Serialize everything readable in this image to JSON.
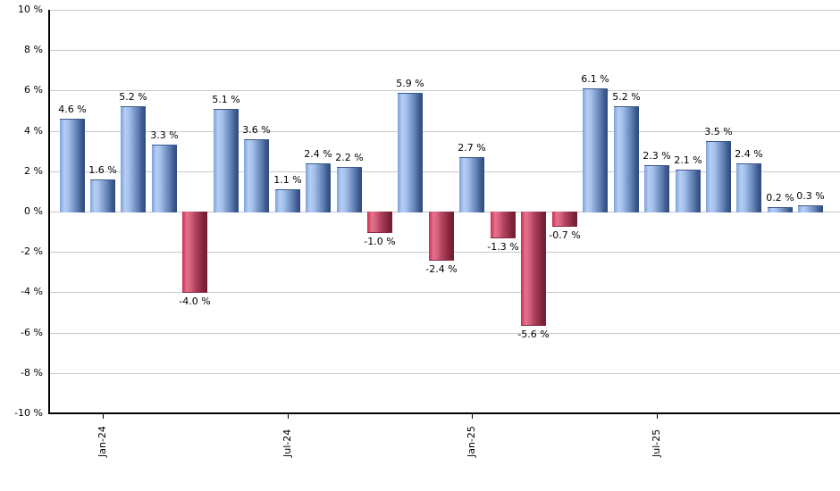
{
  "chart_data": {
    "type": "bar",
    "title": "",
    "xlabel": "",
    "ylabel": "",
    "unit": "%",
    "ylim": [
      -10,
      10
    ],
    "y_tick_step": 2,
    "grid": true,
    "legend": false,
    "y_tick_labels": [
      "10 %",
      "8 %",
      "6 %",
      "4 %",
      "2 %",
      "0 %",
      "-2 %",
      "-4 %",
      "-6 %",
      "-8 %",
      "-10 %"
    ],
    "values": [
      4.6,
      1.6,
      5.2,
      3.3,
      -4.0,
      5.1,
      3.6,
      1.1,
      2.4,
      2.2,
      -1.0,
      5.9,
      -2.4,
      2.7,
      -1.3,
      -5.6,
      -0.7,
      6.1,
      5.2,
      2.3,
      2.1,
      3.5,
      2.4,
      0.2,
      0.3
    ],
    "bar_labels": [
      "4.6 %",
      "1.6 %",
      "5.2 %",
      "3.3 %",
      "-4.0 %",
      "5.1 %",
      "3.6 %",
      "1.1 %",
      "2.4 %",
      "2.2 %",
      "-1.0 %",
      "5.9 %",
      "-2.4 %",
      "2.7 %",
      "-1.3 %",
      "-5.6 %",
      "-0.7 %",
      "6.1 %",
      "5.2 %",
      "2.3 %",
      "2.1 %",
      "3.5 %",
      "2.4 %",
      "0.2 %",
      "0.3 %"
    ],
    "x_tick_labels": [
      {
        "label": "Jan-24",
        "bar_index": 1
      },
      {
        "label": "Jul-24",
        "bar_index": 7
      },
      {
        "label": "Jan-25",
        "bar_index": 13
      },
      {
        "label": "Jul-25",
        "bar_index": 19
      }
    ],
    "colors": {
      "positive_bar": "#6d93cb",
      "positive_bar_highlight": "#b6cef5",
      "positive_bar_dark": "#2e4a7b",
      "negative_bar": "#c23a5d",
      "negative_bar_highlight": "#e2758d",
      "negative_bar_dark": "#6e1d30",
      "gridline": "#c9c9c9",
      "axis": "#000000",
      "background": "#ffffff"
    }
  }
}
